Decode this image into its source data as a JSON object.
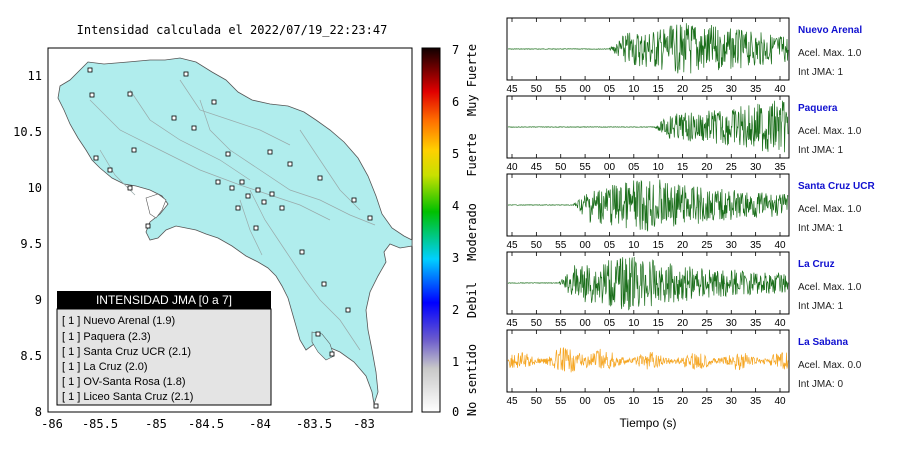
{
  "map": {
    "title": "Intensidad calculada el 2022/07/19_22:23:47",
    "xticks": [
      "-86",
      "-85.5",
      "-85",
      "-84.5",
      "-84",
      "-83.5",
      "-83"
    ],
    "yticks": [
      "11",
      "10.5",
      "10",
      "9.5",
      "9",
      "8.5",
      "8"
    ],
    "legend_title": "INTENSIDAD JMA [0 a 7]",
    "legend_items": [
      "[ 1 ]  Nuevo Arenal (1.9)",
      "[ 1 ]  Paquera (2.3)",
      "[ 1 ]  Santa Cruz UCR (2.1)",
      "[ 1 ]  La Cruz (2.0)",
      "[ 1 ]  OV-Santa Rosa (1.8)",
      "[ 1 ]  Liceo Santa Cruz (2.1)"
    ],
    "land_color": "#b0eded"
  },
  "colorbar": {
    "ticks": [
      "7",
      "6",
      "5",
      "4",
      "3",
      "2",
      "1",
      "0"
    ],
    "labels": [
      "Muy Fuerte",
      "Fuerte",
      "Moderado",
      "Debil",
      "No sentido"
    ]
  },
  "chart_data": {
    "type": "line",
    "xlabel": "Tiempo (s)",
    "series": [
      {
        "name": "Nuevo Arenal",
        "accel": "Acel. Max. 1.0",
        "jma": "Int JMA: 1",
        "color": "#1a6e1a",
        "ticks": [
          "45",
          "50",
          "55",
          "00",
          "05",
          "10",
          "15",
          "20",
          "25",
          "30",
          "35",
          "40"
        ],
        "onset": 0.36,
        "peak": 0.66
      },
      {
        "name": "Paquera",
        "accel": "Acel. Max. 1.0",
        "jma": "Int JMA: 1",
        "color": "#1a6e1a",
        "ticks": [
          "40",
          "45",
          "50",
          "55",
          "00",
          "05",
          "10",
          "15",
          "20",
          "25",
          "30",
          "35"
        ],
        "onset": 0.52,
        "peak": 0.96
      },
      {
        "name": "Santa Cruz UCR",
        "accel": "Acel. Max. 1.0",
        "jma": "Int JMA: 1",
        "color": "#1a6e1a",
        "ticks": [
          "45",
          "50",
          "55",
          "00",
          "05",
          "10",
          "15",
          "20",
          "25",
          "30",
          "35",
          "40"
        ],
        "onset": 0.23,
        "peak": 0.5
      },
      {
        "name": "La Cruz",
        "accel": "Acel. Max. 1.0",
        "jma": "Int JMA: 1",
        "color": "#1a6e1a",
        "ticks": [
          "45",
          "50",
          "55",
          "00",
          "05",
          "10",
          "15",
          "20",
          "25",
          "30",
          "35",
          "40"
        ],
        "onset": 0.18,
        "peak": 0.43
      },
      {
        "name": "La Sabana",
        "accel": "Acel. Max. 0.0",
        "jma": "Int JMA: 0",
        "color": "#f5a623",
        "ticks": [
          "45",
          "50",
          "55",
          "00",
          "05",
          "10",
          "15",
          "20",
          "25",
          "30",
          "35",
          "40"
        ],
        "onset": 0.0,
        "peak": 0.25
      }
    ]
  }
}
